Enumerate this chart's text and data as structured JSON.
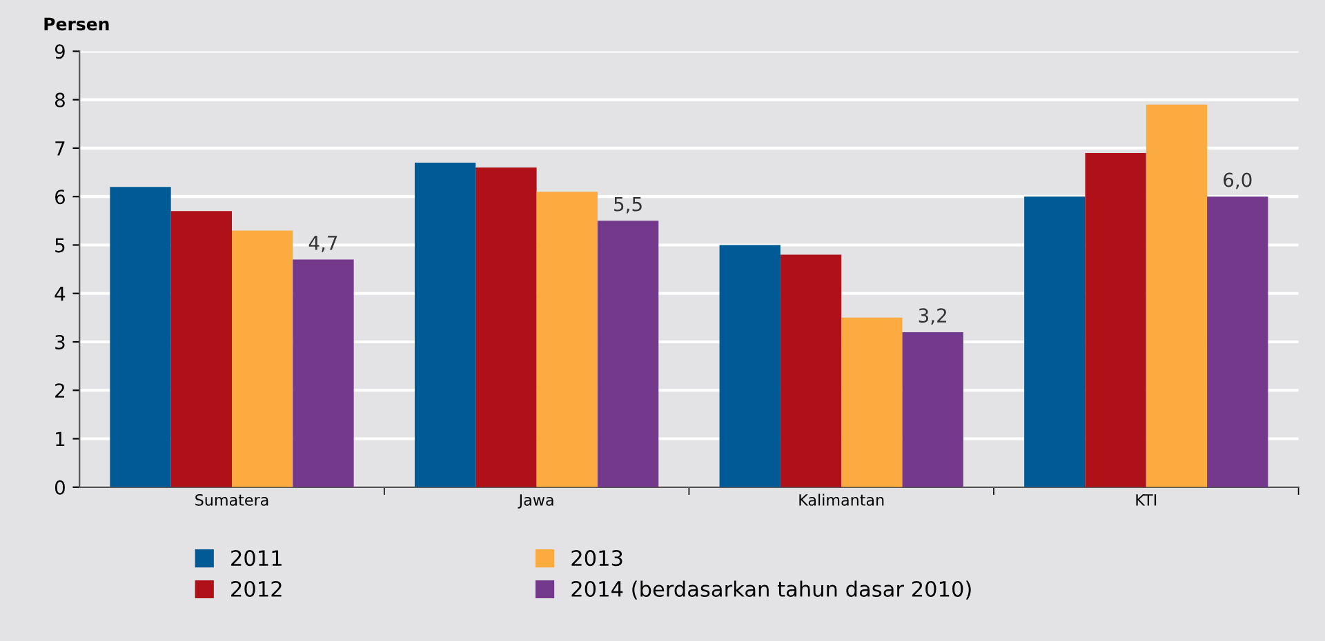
{
  "chart_data": {
    "type": "bar",
    "ylabel": "Persen",
    "categories": [
      "Sumatera",
      "Jawa",
      "Kalimantan",
      "KTI"
    ],
    "series": [
      {
        "name": "2011",
        "color": "#005a96",
        "values": [
          6.2,
          6.7,
          5.0,
          6.0
        ]
      },
      {
        "name": "2012",
        "color": "#b01018",
        "values": [
          5.7,
          6.6,
          4.8,
          6.9
        ]
      },
      {
        "name": "2013",
        "color": "#fbab3f",
        "values": [
          5.3,
          6.1,
          3.5,
          7.9
        ]
      },
      {
        "name": "2014 (berdasarkan tahun dasar 2010)",
        "color": "#74388c",
        "values": [
          4.7,
          5.5,
          3.2,
          6.0
        ],
        "value_labels": [
          "4,7",
          "5,5",
          "3,2",
          "6,0"
        ]
      }
    ],
    "ylim": [
      0,
      9
    ],
    "yticks": [
      0,
      1,
      2,
      3,
      4,
      5,
      6,
      7,
      8,
      9
    ],
    "grid": "y",
    "legend": "bottom"
  }
}
